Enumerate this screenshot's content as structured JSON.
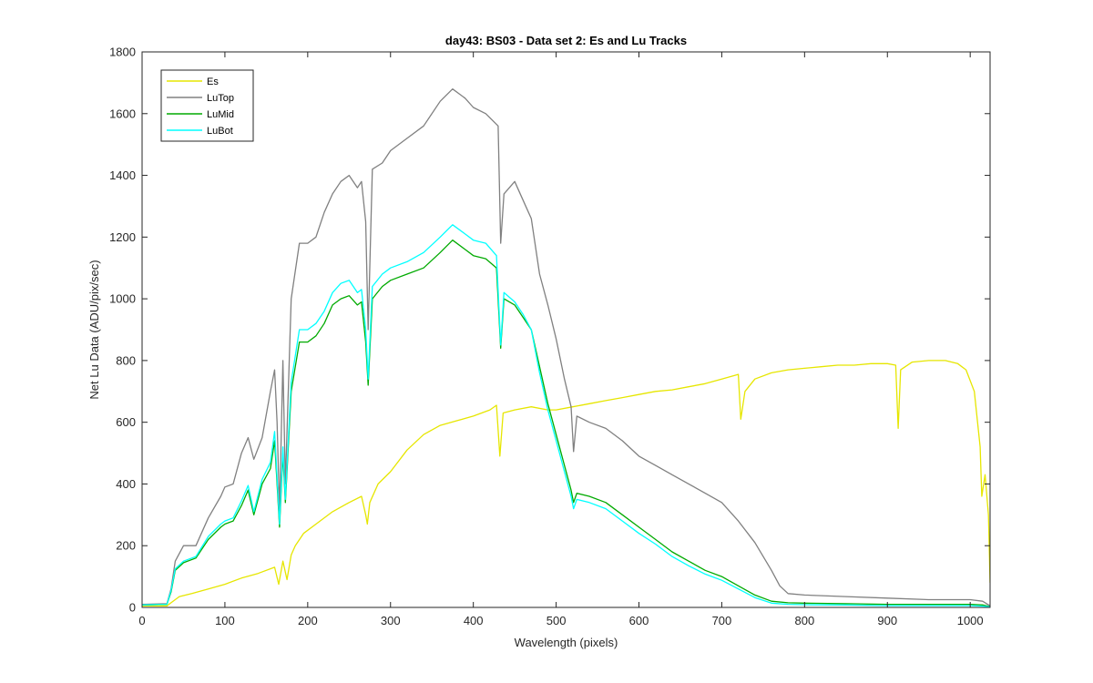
{
  "chart_data": {
    "type": "line",
    "title": "day43: BS03 - Data set 2: Es and Lu Tracks",
    "xlabel": "Wavelength (pixels)",
    "ylabel": "Net Lu Data (ADU/pix/sec)",
    "xlim": [
      0,
      1024
    ],
    "ylim": [
      0,
      1800
    ],
    "xticks": [
      0,
      100,
      200,
      300,
      400,
      500,
      600,
      700,
      800,
      900,
      1000
    ],
    "yticks": [
      0,
      200,
      400,
      600,
      800,
      1000,
      1200,
      1400,
      1600,
      1800
    ],
    "legend_position": "top-left",
    "series": [
      {
        "name": "Es",
        "color": "#E6E600",
        "points": [
          [
            0,
            5
          ],
          [
            30,
            5
          ],
          [
            35,
            15
          ],
          [
            45,
            35
          ],
          [
            60,
            45
          ],
          [
            80,
            60
          ],
          [
            100,
            75
          ],
          [
            120,
            95
          ],
          [
            140,
            110
          ],
          [
            160,
            130
          ],
          [
            165,
            75
          ],
          [
            170,
            150
          ],
          [
            175,
            90
          ],
          [
            180,
            170
          ],
          [
            185,
            200
          ],
          [
            195,
            240
          ],
          [
            210,
            270
          ],
          [
            230,
            310
          ],
          [
            250,
            340
          ],
          [
            265,
            360
          ],
          [
            270,
            300
          ],
          [
            272,
            270
          ],
          [
            275,
            340
          ],
          [
            285,
            400
          ],
          [
            300,
            440
          ],
          [
            320,
            510
          ],
          [
            340,
            560
          ],
          [
            360,
            590
          ],
          [
            380,
            605
          ],
          [
            400,
            620
          ],
          [
            420,
            640
          ],
          [
            428,
            655
          ],
          [
            432,
            490
          ],
          [
            436,
            630
          ],
          [
            450,
            640
          ],
          [
            470,
            650
          ],
          [
            490,
            640
          ],
          [
            500,
            640
          ],
          [
            520,
            650
          ],
          [
            540,
            660
          ],
          [
            560,
            670
          ],
          [
            580,
            680
          ],
          [
            600,
            690
          ],
          [
            620,
            700
          ],
          [
            640,
            705
          ],
          [
            660,
            715
          ],
          [
            680,
            725
          ],
          [
            700,
            740
          ],
          [
            720,
            755
          ],
          [
            723,
            610
          ],
          [
            728,
            700
          ],
          [
            740,
            740
          ],
          [
            760,
            760
          ],
          [
            780,
            770
          ],
          [
            800,
            775
          ],
          [
            820,
            780
          ],
          [
            840,
            785
          ],
          [
            860,
            785
          ],
          [
            880,
            790
          ],
          [
            900,
            790
          ],
          [
            910,
            785
          ],
          [
            913,
            580
          ],
          [
            916,
            770
          ],
          [
            930,
            795
          ],
          [
            950,
            800
          ],
          [
            970,
            800
          ],
          [
            985,
            790
          ],
          [
            995,
            770
          ],
          [
            1005,
            700
          ],
          [
            1012,
            520
          ],
          [
            1014,
            360
          ],
          [
            1018,
            430
          ],
          [
            1022,
            300
          ],
          [
            1024,
            80
          ]
        ]
      },
      {
        "name": "LuTop",
        "color": "#808080",
        "points": [
          [
            0,
            10
          ],
          [
            30,
            12
          ],
          [
            35,
            60
          ],
          [
            40,
            150
          ],
          [
            50,
            200
          ],
          [
            65,
            200
          ],
          [
            80,
            290
          ],
          [
            95,
            360
          ],
          [
            100,
            390
          ],
          [
            110,
            400
          ],
          [
            120,
            500
          ],
          [
            128,
            550
          ],
          [
            135,
            480
          ],
          [
            145,
            550
          ],
          [
            155,
            700
          ],
          [
            160,
            770
          ],
          [
            163,
            600
          ],
          [
            166,
            310
          ],
          [
            170,
            800
          ],
          [
            173,
            400
          ],
          [
            180,
            1000
          ],
          [
            190,
            1180
          ],
          [
            200,
            1180
          ],
          [
            210,
            1200
          ],
          [
            220,
            1280
          ],
          [
            230,
            1340
          ],
          [
            240,
            1380
          ],
          [
            250,
            1400
          ],
          [
            260,
            1360
          ],
          [
            265,
            1380
          ],
          [
            270,
            1250
          ],
          [
            273,
            900
          ],
          [
            278,
            1420
          ],
          [
            290,
            1440
          ],
          [
            300,
            1480
          ],
          [
            320,
            1520
          ],
          [
            340,
            1560
          ],
          [
            360,
            1640
          ],
          [
            375,
            1680
          ],
          [
            390,
            1650
          ],
          [
            400,
            1620
          ],
          [
            415,
            1600
          ],
          [
            430,
            1560
          ],
          [
            433,
            1180
          ],
          [
            437,
            1340
          ],
          [
            450,
            1380
          ],
          [
            460,
            1320
          ],
          [
            470,
            1260
          ],
          [
            480,
            1080
          ],
          [
            490,
            980
          ],
          [
            500,
            870
          ],
          [
            510,
            740
          ],
          [
            518,
            650
          ],
          [
            521,
            505
          ],
          [
            525,
            620
          ],
          [
            540,
            600
          ],
          [
            560,
            580
          ],
          [
            580,
            540
          ],
          [
            600,
            490
          ],
          [
            620,
            460
          ],
          [
            640,
            430
          ],
          [
            660,
            400
          ],
          [
            680,
            370
          ],
          [
            700,
            340
          ],
          [
            720,
            280
          ],
          [
            740,
            210
          ],
          [
            760,
            120
          ],
          [
            770,
            70
          ],
          [
            780,
            45
          ],
          [
            800,
            40
          ],
          [
            850,
            35
          ],
          [
            900,
            30
          ],
          [
            950,
            25
          ],
          [
            1000,
            25
          ],
          [
            1015,
            20
          ],
          [
            1024,
            5
          ]
        ]
      },
      {
        "name": "LuMid",
        "color": "#00AA00",
        "points": [
          [
            0,
            8
          ],
          [
            30,
            10
          ],
          [
            35,
            50
          ],
          [
            40,
            120
          ],
          [
            50,
            145
          ],
          [
            65,
            160
          ],
          [
            80,
            220
          ],
          [
            95,
            260
          ],
          [
            100,
            270
          ],
          [
            110,
            280
          ],
          [
            120,
            330
          ],
          [
            128,
            380
          ],
          [
            135,
            300
          ],
          [
            145,
            400
          ],
          [
            155,
            450
          ],
          [
            160,
            540
          ],
          [
            163,
            400
          ],
          [
            166,
            260
          ],
          [
            170,
            500
          ],
          [
            173,
            340
          ],
          [
            180,
            700
          ],
          [
            190,
            860
          ],
          [
            200,
            860
          ],
          [
            210,
            880
          ],
          [
            220,
            920
          ],
          [
            230,
            980
          ],
          [
            240,
            1000
          ],
          [
            250,
            1010
          ],
          [
            260,
            980
          ],
          [
            265,
            990
          ],
          [
            270,
            860
          ],
          [
            273,
            720
          ],
          [
            278,
            1000
          ],
          [
            290,
            1040
          ],
          [
            300,
            1060
          ],
          [
            320,
            1080
          ],
          [
            340,
            1100
          ],
          [
            360,
            1150
          ],
          [
            375,
            1190
          ],
          [
            390,
            1160
          ],
          [
            400,
            1140
          ],
          [
            415,
            1130
          ],
          [
            428,
            1100
          ],
          [
            433,
            840
          ],
          [
            437,
            1000
          ],
          [
            450,
            980
          ],
          [
            460,
            940
          ],
          [
            470,
            900
          ],
          [
            480,
            780
          ],
          [
            490,
            660
          ],
          [
            500,
            560
          ],
          [
            510,
            460
          ],
          [
            518,
            380
          ],
          [
            521,
            340
          ],
          [
            525,
            370
          ],
          [
            540,
            360
          ],
          [
            560,
            340
          ],
          [
            580,
            300
          ],
          [
            600,
            260
          ],
          [
            620,
            220
          ],
          [
            640,
            180
          ],
          [
            660,
            150
          ],
          [
            680,
            120
          ],
          [
            700,
            100
          ],
          [
            720,
            70
          ],
          [
            740,
            40
          ],
          [
            760,
            20
          ],
          [
            780,
            15
          ],
          [
            800,
            14
          ],
          [
            850,
            12
          ],
          [
            900,
            10
          ],
          [
            950,
            10
          ],
          [
            1000,
            10
          ],
          [
            1015,
            8
          ],
          [
            1024,
            3
          ]
        ]
      },
      {
        "name": "LuBot",
        "color": "#00FFFF",
        "points": [
          [
            0,
            8
          ],
          [
            30,
            10
          ],
          [
            35,
            55
          ],
          [
            40,
            125
          ],
          [
            50,
            150
          ],
          [
            65,
            165
          ],
          [
            80,
            230
          ],
          [
            95,
            270
          ],
          [
            100,
            280
          ],
          [
            110,
            290
          ],
          [
            120,
            345
          ],
          [
            128,
            395
          ],
          [
            135,
            310
          ],
          [
            145,
            415
          ],
          [
            155,
            470
          ],
          [
            160,
            570
          ],
          [
            163,
            420
          ],
          [
            166,
            270
          ],
          [
            170,
            520
          ],
          [
            173,
            350
          ],
          [
            180,
            730
          ],
          [
            190,
            900
          ],
          [
            200,
            900
          ],
          [
            210,
            920
          ],
          [
            220,
            960
          ],
          [
            230,
            1020
          ],
          [
            240,
            1050
          ],
          [
            250,
            1060
          ],
          [
            260,
            1020
          ],
          [
            265,
            1030
          ],
          [
            270,
            900
          ],
          [
            273,
            740
          ],
          [
            278,
            1040
          ],
          [
            290,
            1080
          ],
          [
            300,
            1100
          ],
          [
            320,
            1120
          ],
          [
            340,
            1150
          ],
          [
            360,
            1200
          ],
          [
            375,
            1240
          ],
          [
            390,
            1210
          ],
          [
            400,
            1190
          ],
          [
            415,
            1180
          ],
          [
            428,
            1140
          ],
          [
            433,
            850
          ],
          [
            437,
            1020
          ],
          [
            450,
            990
          ],
          [
            460,
            950
          ],
          [
            470,
            900
          ],
          [
            480,
            760
          ],
          [
            490,
            640
          ],
          [
            500,
            540
          ],
          [
            510,
            440
          ],
          [
            518,
            360
          ],
          [
            521,
            320
          ],
          [
            525,
            350
          ],
          [
            540,
            340
          ],
          [
            560,
            320
          ],
          [
            580,
            280
          ],
          [
            600,
            240
          ],
          [
            620,
            205
          ],
          [
            640,
            165
          ],
          [
            660,
            135
          ],
          [
            680,
            108
          ],
          [
            700,
            88
          ],
          [
            720,
            60
          ],
          [
            740,
            32
          ],
          [
            760,
            14
          ],
          [
            780,
            10
          ],
          [
            800,
            9
          ],
          [
            850,
            8
          ],
          [
            900,
            6
          ],
          [
            950,
            6
          ],
          [
            1000,
            6
          ],
          [
            1015,
            4
          ],
          [
            1024,
            2
          ]
        ]
      }
    ]
  }
}
